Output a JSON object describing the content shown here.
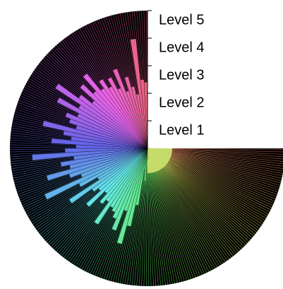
{
  "chart_data": {
    "type": "radial-bar",
    "rlim": [
      0,
      5
    ],
    "rticks": [
      {
        "value": 1,
        "label": "Level 1"
      },
      {
        "value": 2,
        "label": "Level 2"
      },
      {
        "value": 3,
        "label": "Level 3"
      },
      {
        "value": 4,
        "label": "Level 4"
      },
      {
        "value": 5,
        "label": "Level 5"
      }
    ],
    "angle_span": 270,
    "color_mode": "hue-by-angle",
    "hue_range": [
      10,
      350
    ],
    "background": "#000000",
    "hub": {
      "value": 0.9,
      "color": "#c5dc6a",
      "angle_span": 90
    },
    "values": [
      0,
      0,
      0,
      0,
      0,
      0,
      0,
      0,
      0,
      0,
      0,
      0,
      0,
      0,
      0,
      0,
      0,
      0,
      0,
      0,
      0,
      0,
      0,
      0,
      0,
      0,
      0,
      0,
      0,
      0,
      0.4,
      1.2,
      0.8,
      2.1,
      2.9,
      3.6,
      2.4,
      3.2,
      2.8,
      2.6,
      2.5,
      3.3,
      2.4,
      2.6,
      2.2,
      3.0,
      2.3,
      2.5,
      3.4,
      2.1,
      2.8,
      4.1,
      2.6,
      3.0,
      3.8,
      2.9,
      3.2,
      2.7,
      4.2,
      3.0,
      2.6,
      3.5,
      2.8,
      3.1,
      3.9,
      2.7,
      3.0,
      3.2,
      2.8,
      3.7,
      2.9,
      4.0,
      3.1,
      2.6,
      3.3,
      2.8,
      3.5,
      2.7,
      3.0,
      2.6,
      2.9,
      2.4,
      3.1,
      2.2,
      2.7,
      2.3,
      2.0,
      4.0,
      2.5,
      2.4
    ]
  }
}
